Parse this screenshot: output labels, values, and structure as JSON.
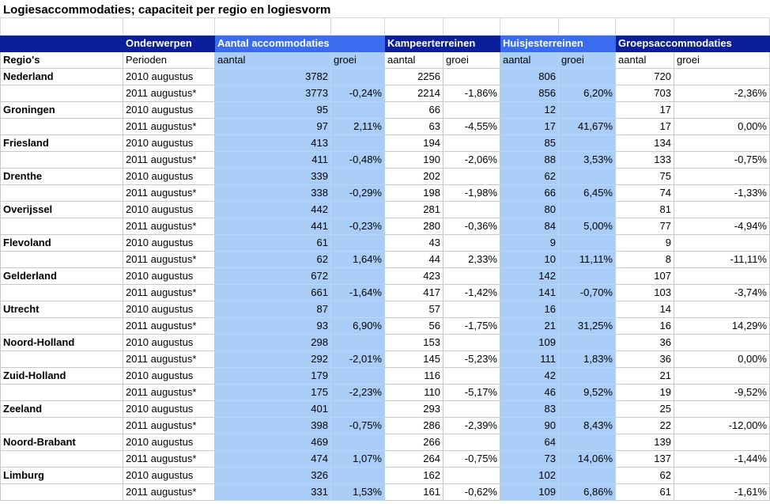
{
  "title": "Logiesaccommodaties; capaciteit per regio en logiesvorm",
  "header": {
    "onderwerpen": "Onderwerpen",
    "groups": [
      "Aantal accommodaties",
      "Kampeerterreinen",
      "Huisjesterreinen",
      "Groepsaccommodaties"
    ],
    "regio_label": "Regio's",
    "perioden_label": "Perioden",
    "aantal": "aantal",
    "groei": "groei"
  },
  "colors": {
    "navy": "#0b1f9a",
    "bright_blue": "#3a6cf0",
    "light_blue": "#a9cdf6"
  },
  "rows": [
    {
      "region": "Nederland",
      "y2010": {
        "period": "2010 augustus",
        "a": "3782",
        "k": "2256",
        "h": "806",
        "g": "720"
      },
      "y2011": {
        "period": "2011 augustus*",
        "a": "3773",
        "ag": "-0,24%",
        "k": "2214",
        "kg": "-1,86%",
        "h": "856",
        "hg": "6,20%",
        "g": "703",
        "gg": "-2,36%"
      }
    },
    {
      "region": "Groningen",
      "y2010": {
        "period": "2010 augustus",
        "a": "95",
        "k": "66",
        "h": "12",
        "g": "17"
      },
      "y2011": {
        "period": "2011 augustus*",
        "a": "97",
        "ag": "2,11%",
        "k": "63",
        "kg": "-4,55%",
        "h": "17",
        "hg": "41,67%",
        "g": "17",
        "gg": "0,00%"
      }
    },
    {
      "region": "Friesland",
      "y2010": {
        "period": "2010 augustus",
        "a": "413",
        "k": "194",
        "h": "85",
        "g": "134"
      },
      "y2011": {
        "period": "2011 augustus*",
        "a": "411",
        "ag": "-0,48%",
        "k": "190",
        "kg": "-2,06%",
        "h": "88",
        "hg": "3,53%",
        "g": "133",
        "gg": "-0,75%"
      }
    },
    {
      "region": "Drenthe",
      "y2010": {
        "period": "2010 augustus",
        "a": "339",
        "k": "202",
        "h": "62",
        "g": "75"
      },
      "y2011": {
        "period": "2011 augustus*",
        "a": "338",
        "ag": "-0,29%",
        "k": "198",
        "kg": "-1,98%",
        "h": "66",
        "hg": "6,45%",
        "g": "74",
        "gg": "-1,33%"
      }
    },
    {
      "region": "Overijssel",
      "y2010": {
        "period": "2010 augustus",
        "a": "442",
        "k": "281",
        "h": "80",
        "g": "81"
      },
      "y2011": {
        "period": "2011 augustus*",
        "a": "441",
        "ag": "-0,23%",
        "k": "280",
        "kg": "-0,36%",
        "h": "84",
        "hg": "5,00%",
        "g": "77",
        "gg": "-4,94%"
      }
    },
    {
      "region": "Flevoland",
      "y2010": {
        "period": "2010 augustus",
        "a": "61",
        "k": "43",
        "h": "9",
        "g": "9"
      },
      "y2011": {
        "period": "2011 augustus*",
        "a": "62",
        "ag": "1,64%",
        "k": "44",
        "kg": "2,33%",
        "h": "10",
        "hg": "11,11%",
        "g": "8",
        "gg": "-11,11%"
      }
    },
    {
      "region": "Gelderland",
      "y2010": {
        "period": "2010 augustus",
        "a": "672",
        "k": "423",
        "h": "142",
        "g": "107"
      },
      "y2011": {
        "period": "2011 augustus*",
        "a": "661",
        "ag": "-1,64%",
        "k": "417",
        "kg": "-1,42%",
        "h": "141",
        "hg": "-0,70%",
        "g": "103",
        "gg": "-3,74%"
      }
    },
    {
      "region": "Utrecht",
      "y2010": {
        "period": "2010 augustus",
        "a": "87",
        "k": "57",
        "h": "16",
        "g": "14"
      },
      "y2011": {
        "period": "2011 augustus*",
        "a": "93",
        "ag": "6,90%",
        "k": "56",
        "kg": "-1,75%",
        "h": "21",
        "hg": "31,25%",
        "g": "16",
        "gg": "14,29%"
      }
    },
    {
      "region": "Noord-Holland",
      "y2010": {
        "period": "2010 augustus",
        "a": "298",
        "k": "153",
        "h": "109",
        "g": "36"
      },
      "y2011": {
        "period": "2011 augustus*",
        "a": "292",
        "ag": "-2,01%",
        "k": "145",
        "kg": "-5,23%",
        "h": "111",
        "hg": "1,83%",
        "g": "36",
        "gg": "0,00%"
      }
    },
    {
      "region": "Zuid-Holland",
      "y2010": {
        "period": "2010 augustus",
        "a": "179",
        "k": "116",
        "h": "42",
        "g": "21"
      },
      "y2011": {
        "period": "2011 augustus*",
        "a": "175",
        "ag": "-2,23%",
        "k": "110",
        "kg": "-5,17%",
        "h": "46",
        "hg": "9,52%",
        "g": "19",
        "gg": "-9,52%"
      }
    },
    {
      "region": "Zeeland",
      "y2010": {
        "period": "2010 augustus",
        "a": "401",
        "k": "293",
        "h": "83",
        "g": "25"
      },
      "y2011": {
        "period": "2011 augustus*",
        "a": "398",
        "ag": "-0,75%",
        "k": "286",
        "kg": "-2,39%",
        "h": "90",
        "hg": "8,43%",
        "g": "22",
        "gg": "-12,00%"
      }
    },
    {
      "region": "Noord-Brabant",
      "y2010": {
        "period": "2010 augustus",
        "a": "469",
        "k": "266",
        "h": "64",
        "g": "139"
      },
      "y2011": {
        "period": "2011 augustus*",
        "a": "474",
        "ag": "1,07%",
        "k": "264",
        "kg": "-0,75%",
        "h": "73",
        "hg": "14,06%",
        "g": "137",
        "gg": "-1,44%"
      }
    },
    {
      "region": "Limburg",
      "y2010": {
        "period": "2010 augustus",
        "a": "326",
        "k": "162",
        "h": "102",
        "g": "62"
      },
      "y2011": {
        "period": "2011 augustus*",
        "a": "331",
        "ag": "1,53%",
        "k": "161",
        "kg": "-0,62%",
        "h": "109",
        "hg": "6,86%",
        "g": "61",
        "gg": "-1,61%"
      }
    }
  ]
}
